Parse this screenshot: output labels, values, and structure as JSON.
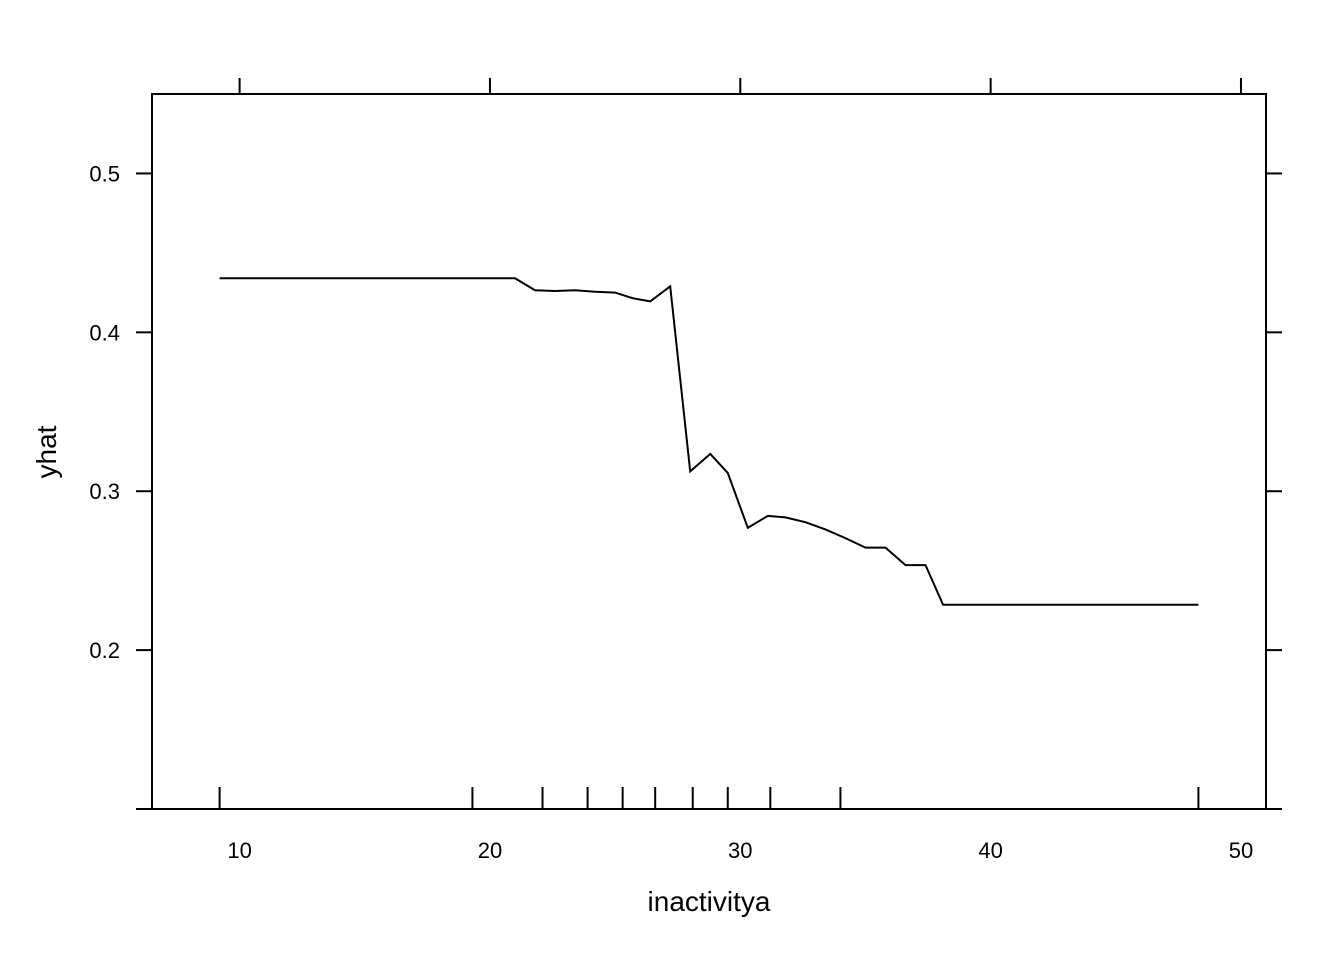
{
  "chart_data": {
    "type": "line",
    "title": "",
    "xlabel": "inactivitya",
    "ylabel": "yhat",
    "xlim": [
      6.5,
      51.0
    ],
    "ylim": [
      0.1,
      0.55
    ],
    "xticks": [
      10,
      20,
      30,
      40,
      50
    ],
    "xtick_labels": [
      "10",
      "20",
      "30",
      "40",
      "50"
    ],
    "yticks": [
      0.2,
      0.3,
      0.4,
      0.5
    ],
    "ytick_labels": [
      "0.2",
      "0.3",
      "0.4",
      "0.5"
    ],
    "grid": false,
    "series": [
      {
        "name": "yhat",
        "x": [
          9.2,
          21.0,
          21.8,
          22.6,
          23.4,
          24.2,
          25.0,
          25.7,
          26.4,
          27.2,
          28.0,
          28.8,
          29.5,
          30.3,
          31.1,
          31.8,
          32.6,
          33.4,
          34.2,
          35.0,
          35.8,
          36.6,
          37.4,
          38.1,
          48.3
        ],
        "values": [
          0.434,
          0.434,
          0.4265,
          0.426,
          0.4265,
          0.4255,
          0.425,
          0.4215,
          0.4195,
          0.429,
          0.3125,
          0.3235,
          0.3115,
          0.277,
          0.2845,
          0.2835,
          0.2805,
          0.276,
          0.2705,
          0.2645,
          0.2645,
          0.2535,
          0.2535,
          0.2285,
          0.2285
        ]
      }
    ],
    "rug_x": [
      9.2,
      19.3,
      22.1,
      23.9,
      25.3,
      26.6,
      28.1,
      29.5,
      31.2,
      34.0,
      48.3
    ]
  }
}
